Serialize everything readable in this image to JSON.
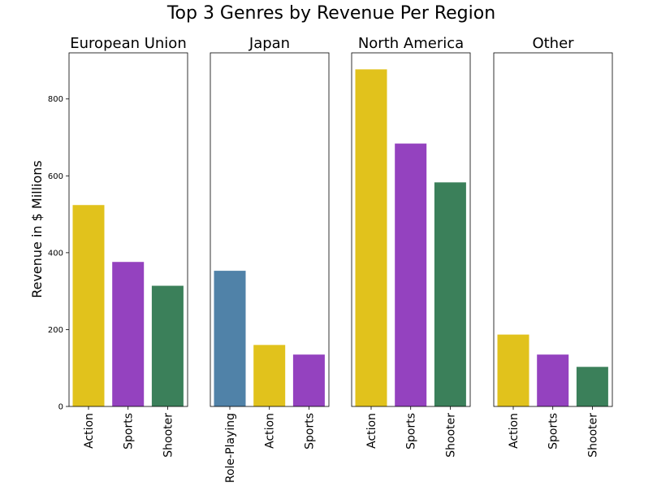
{
  "chart_data": {
    "type": "bar",
    "title": "Top 3 Genres by Revenue Per Region",
    "ylabel": "Revenue in $ Millions",
    "ylim": [
      0,
      920
    ],
    "yticks": [
      0,
      200,
      400,
      600,
      800
    ],
    "grid": false,
    "sharey": true,
    "colors": {
      "Action": "#e1c21c",
      "Sports": "#9442bf",
      "Shooter": "#3b805a",
      "Role-Playing": "#5082a8"
    },
    "panels": [
      {
        "title": "European Union",
        "categories": [
          "Action",
          "Sports",
          "Shooter"
        ],
        "values": [
          524,
          376,
          314
        ]
      },
      {
        "title": "Japan",
        "categories": [
          "Role-Playing",
          "Action",
          "Sports"
        ],
        "values": [
          353,
          160,
          135
        ]
      },
      {
        "title": "North America",
        "categories": [
          "Action",
          "Sports",
          "Shooter"
        ],
        "values": [
          877,
          684,
          583
        ]
      },
      {
        "title": "Other",
        "categories": [
          "Action",
          "Sports",
          "Shooter"
        ],
        "values": [
          187,
          135,
          103
        ]
      }
    ]
  }
}
